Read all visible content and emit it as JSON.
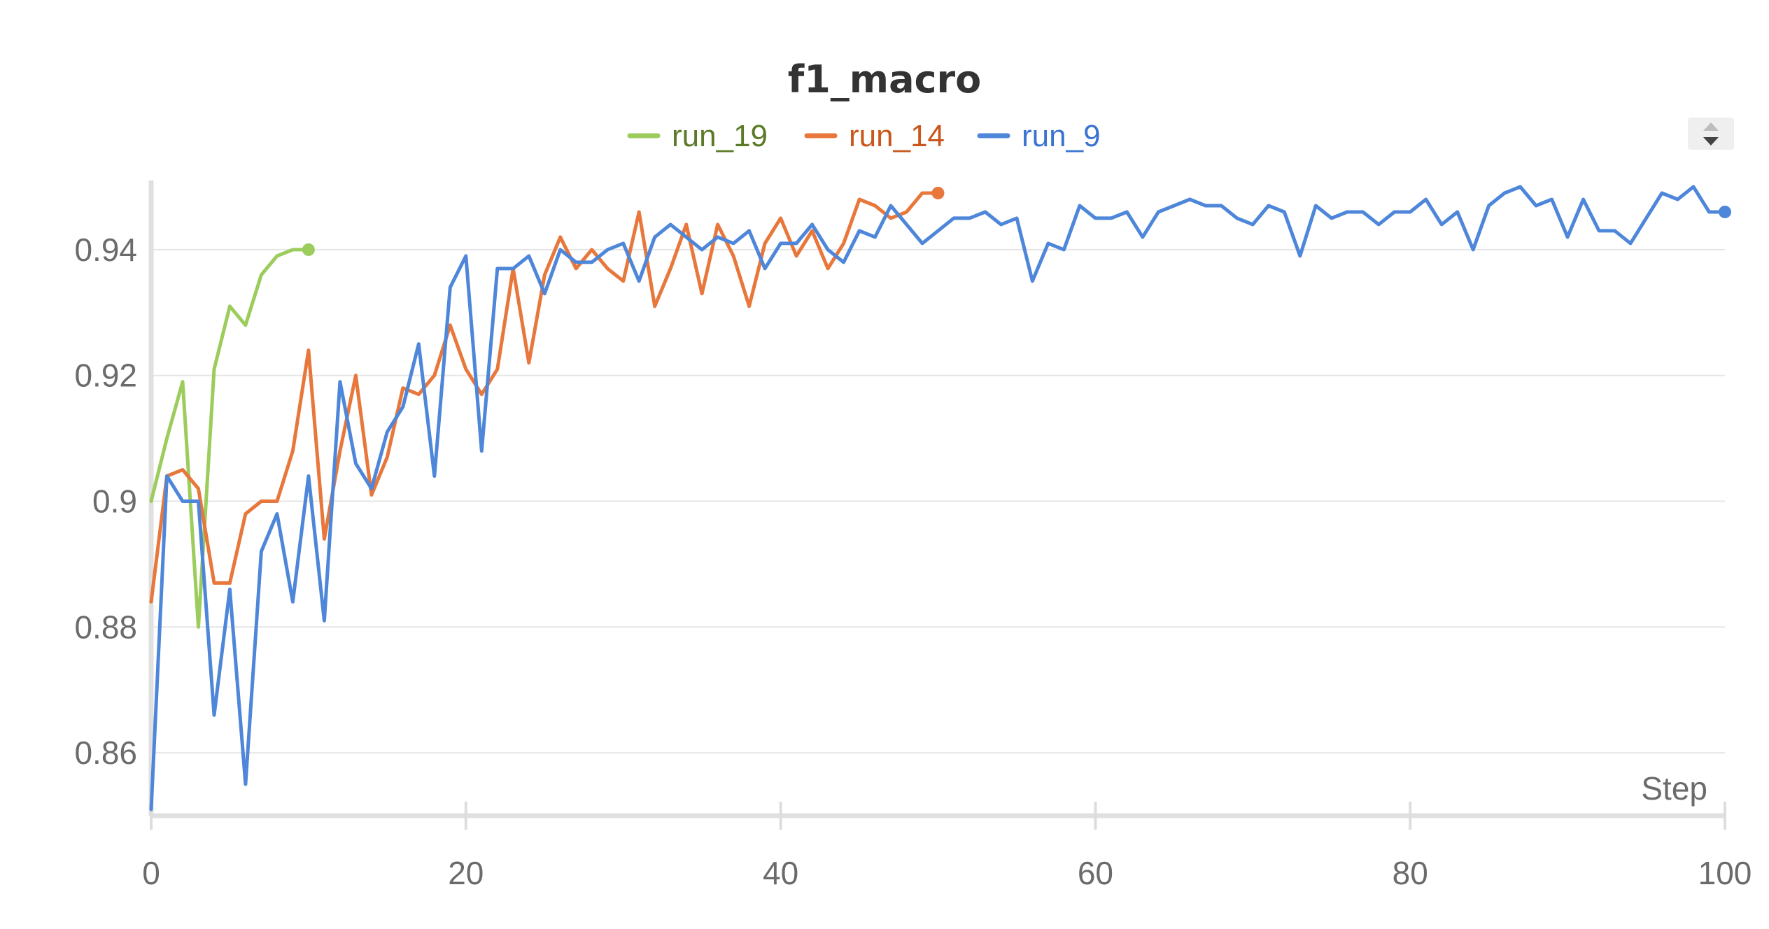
{
  "chart_data": {
    "type": "line",
    "title": "f1_macro",
    "xlabel": "Step",
    "ylabel": "",
    "xlim": [
      0,
      100
    ],
    "ylim": [
      0.85,
      0.951
    ],
    "x_ticks": [
      "0",
      "20",
      "40",
      "60",
      "80",
      "100"
    ],
    "y_ticks": [
      "0.86",
      "0.88",
      "0.9",
      "0.92",
      "0.94"
    ],
    "grid": true,
    "legend_position": "top-center",
    "series": [
      {
        "name": "run_19",
        "color": "#9ccc5c",
        "label_color": "#5b7a28",
        "x": [
          0,
          1,
          2,
          3,
          4,
          5,
          6,
          7,
          8,
          9,
          10
        ],
        "y": [
          0.9,
          0.91,
          0.919,
          0.88,
          0.921,
          0.931,
          0.928,
          0.936,
          0.939,
          0.94,
          0.94
        ]
      },
      {
        "name": "run_14",
        "color": "#e8773c",
        "label_color": "#c9561b",
        "x": [
          0,
          1,
          2,
          3,
          4,
          5,
          6,
          7,
          8,
          9,
          10,
          11,
          12,
          13,
          14,
          15,
          16,
          17,
          18,
          19,
          20,
          21,
          22,
          23,
          24,
          25,
          26,
          27,
          28,
          29,
          30,
          31,
          32,
          33,
          34,
          35,
          36,
          37,
          38,
          39,
          40,
          41,
          42,
          43,
          44,
          45,
          46,
          47,
          48,
          49,
          50
        ],
        "y": [
          0.884,
          0.904,
          0.905,
          0.902,
          0.887,
          0.887,
          0.898,
          0.9,
          0.9,
          0.908,
          0.924,
          0.894,
          0.908,
          0.92,
          0.901,
          0.907,
          0.918,
          0.917,
          0.92,
          0.928,
          0.921,
          0.917,
          0.921,
          0.937,
          0.922,
          0.936,
          0.942,
          0.937,
          0.94,
          0.937,
          0.935,
          0.946,
          0.931,
          0.937,
          0.944,
          0.933,
          0.944,
          0.939,
          0.931,
          0.941,
          0.945,
          0.939,
          0.943,
          0.937,
          0.941,
          0.948,
          0.947,
          0.945,
          0.946,
          0.949,
          0.949
        ]
      },
      {
        "name": "run_9",
        "color": "#4e86d9",
        "label_color": "#3a74d1",
        "x": [
          0,
          1,
          2,
          3,
          4,
          5,
          6,
          7,
          8,
          9,
          10,
          11,
          12,
          13,
          14,
          15,
          16,
          17,
          18,
          19,
          20,
          21,
          22,
          23,
          24,
          25,
          26,
          27,
          28,
          29,
          30,
          31,
          32,
          33,
          34,
          35,
          36,
          37,
          38,
          39,
          40,
          41,
          42,
          43,
          44,
          45,
          46,
          47,
          48,
          49,
          50,
          51,
          52,
          53,
          54,
          55,
          56,
          57,
          58,
          59,
          60,
          61,
          62,
          63,
          64,
          65,
          66,
          67,
          68,
          69,
          70,
          71,
          72,
          73,
          74,
          75,
          76,
          77,
          78,
          79,
          80,
          81,
          82,
          83,
          84,
          85,
          86,
          87,
          88,
          89,
          90,
          91,
          92,
          93,
          94,
          95,
          96,
          97,
          98,
          99,
          100
        ],
        "y": [
          0.851,
          0.904,
          0.9,
          0.9,
          0.866,
          0.886,
          0.855,
          0.892,
          0.898,
          0.884,
          0.904,
          0.881,
          0.919,
          0.906,
          0.902,
          0.911,
          0.915,
          0.925,
          0.904,
          0.934,
          0.939,
          0.908,
          0.937,
          0.937,
          0.939,
          0.933,
          0.94,
          0.938,
          0.938,
          0.94,
          0.941,
          0.935,
          0.942,
          0.944,
          0.942,
          0.94,
          0.942,
          0.941,
          0.943,
          0.937,
          0.941,
          0.941,
          0.944,
          0.94,
          0.938,
          0.943,
          0.942,
          0.947,
          0.944,
          0.941,
          0.943,
          0.945,
          0.945,
          0.946,
          0.944,
          0.945,
          0.935,
          0.941,
          0.94,
          0.947,
          0.945,
          0.945,
          0.946,
          0.942,
          0.946,
          0.947,
          0.948,
          0.947,
          0.947,
          0.945,
          0.944,
          0.947,
          0.946,
          0.939,
          0.947,
          0.945,
          0.946,
          0.946,
          0.944,
          0.946,
          0.946,
          0.948,
          0.944,
          0.946,
          0.94,
          0.947,
          0.949,
          0.95,
          0.947,
          0.948,
          0.942,
          0.948,
          0.943,
          0.943,
          0.941,
          0.945,
          0.949,
          0.948,
          0.95,
          0.946,
          0.946
        ]
      }
    ]
  }
}
